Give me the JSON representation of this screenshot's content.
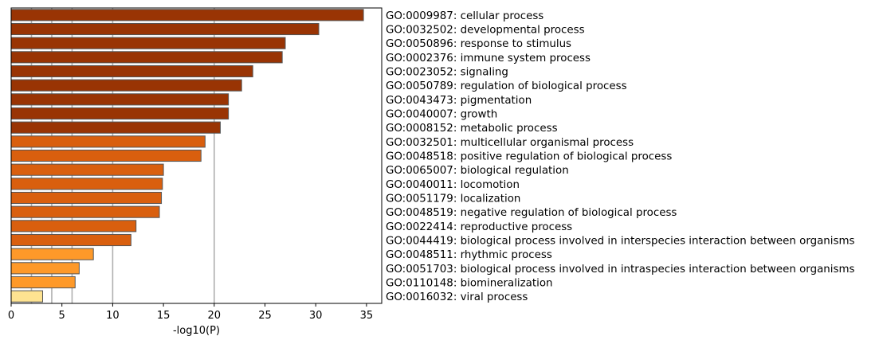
{
  "chart_data": {
    "type": "bar",
    "orientation": "horizontal",
    "xlabel": "-log10(P)",
    "xlim": [
      0,
      36.5
    ],
    "xticks": [
      0,
      5,
      10,
      15,
      20,
      25,
      30,
      35
    ],
    "reference_lines": [
      2,
      4,
      6,
      10,
      20
    ],
    "labels_position": "right",
    "categories": [
      "GO:0009987: cellular process",
      "GO:0032502: developmental process",
      "GO:0050896: response to stimulus",
      "GO:0002376: immune system process",
      "GO:0023052: signaling",
      "GO:0050789: regulation of biological process",
      "GO:0043473: pigmentation",
      "GO:0040007: growth",
      "GO:0008152: metabolic process",
      "GO:0032501: multicellular organismal process",
      "GO:0048518: positive regulation of biological process",
      "GO:0065007: biological regulation",
      "GO:0040011: locomotion",
      "GO:0051179: localization",
      "GO:0048519: negative regulation of biological process",
      "GO:0022414: reproductive process",
      "GO:0044419: biological process involved in interspecies interaction between organisms",
      "GO:0048511: rhythmic process",
      "GO:0051703: biological process involved in intraspecies interaction between organisms",
      "GO:0110148: biomineralization",
      "GO:0016032: viral process"
    ],
    "values": [
      34.7,
      30.3,
      27.0,
      26.7,
      23.8,
      22.7,
      21.4,
      21.4,
      20.6,
      19.1,
      18.7,
      15.0,
      14.9,
      14.8,
      14.6,
      12.3,
      11.8,
      8.1,
      6.7,
      6.3,
      3.1
    ],
    "colors": [
      "#993404",
      "#993404",
      "#993404",
      "#993404",
      "#993404",
      "#993404",
      "#993404",
      "#993404",
      "#993404",
      "#d95f0e",
      "#d95f0e",
      "#d95f0e",
      "#d95f0e",
      "#d95f0e",
      "#d95f0e",
      "#d95f0e",
      "#d95f0e",
      "#fe9929",
      "#fe9929",
      "#fe9929",
      "#fee391"
    ],
    "bar_edge_color": "#555555",
    "reference_line_color": "#b0b0b0"
  }
}
